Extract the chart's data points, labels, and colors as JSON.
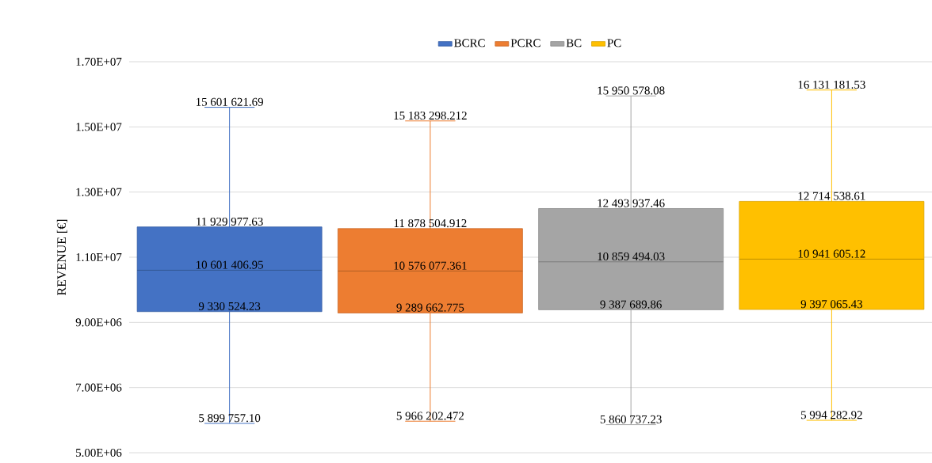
{
  "chart_data": {
    "type": "box",
    "ylabel": "REVENUE [€]",
    "categories": [
      null,
      null,
      null,
      null
    ],
    "ylim": [
      5000000,
      17000000
    ],
    "yticks": [
      {
        "value": 5000000,
        "label": "5.00E+06"
      },
      {
        "value": 7000000,
        "label": "7.00E+06"
      },
      {
        "value": 9000000,
        "label": "9.00E+06"
      },
      {
        "value": 11000000,
        "label": "1.10E+07"
      },
      {
        "value": 13000000,
        "label": "1.30E+07"
      },
      {
        "value": 15000000,
        "label": "1.50E+07"
      },
      {
        "value": 17000000,
        "label": "1.70E+07"
      }
    ],
    "grid": "y",
    "legend": "top",
    "series": [
      {
        "name": "BCRC",
        "color": "#4472c4",
        "boxes": [
          {
            "low": 5899757.1,
            "q1": 9330524.23,
            "median": 10601406.95,
            "q3": 11929977.63,
            "high": 15601621.69
          },
          null,
          null,
          null
        ],
        "value_labels": [
          {
            "low": "5 899 757.10",
            "q1": "9 330 524.23",
            "median": "10 601 406.95",
            "q3": "11 929 977.63",
            "high": "15 601 621.69"
          },
          null,
          null,
          null
        ]
      },
      {
        "name": "PCRC",
        "color": "#ed7d31",
        "boxes": [
          null,
          {
            "low": 5966202.472,
            "q1": 9289662.775,
            "median": 10576077.361,
            "q3": 11878504.912,
            "high": 15183298.212
          },
          null,
          null
        ],
        "value_labels": [
          null,
          {
            "low": "5 966 202.472",
            "q1": "9 289 662.775",
            "median": "10 576 077.361",
            "q3": "11 878 504.912",
            "high": "15 183 298.212"
          },
          null,
          null
        ]
      },
      {
        "name": "BC",
        "color": "#a5a5a5",
        "boxes": [
          null,
          null,
          {
            "low": 5860737.23,
            "q1": 9387689.86,
            "median": 10859494.03,
            "q3": 12493937.46,
            "high": 15950578.08
          },
          null
        ],
        "value_labels": [
          null,
          null,
          {
            "low": "5 860 737.23",
            "q1": "9 387 689.86",
            "median": "10 859 494.03",
            "q3": "12 493 937.46",
            "high": "15 950 578.08"
          },
          null
        ]
      },
      {
        "name": "PC",
        "color": "#ffc000",
        "boxes": [
          null,
          null,
          null,
          {
            "low": 5994282.92,
            "q1": 9397065.43,
            "median": 10941605.12,
            "q3": 12714538.61,
            "high": 16131181.53
          }
        ],
        "value_labels": [
          null,
          null,
          null,
          {
            "low": "5 994 282.92",
            "q1": "9 397 065.43",
            "median": "10 941 605.12",
            "q3": "12 714 538.61",
            "high": "16 131 181.53"
          }
        ]
      }
    ]
  }
}
